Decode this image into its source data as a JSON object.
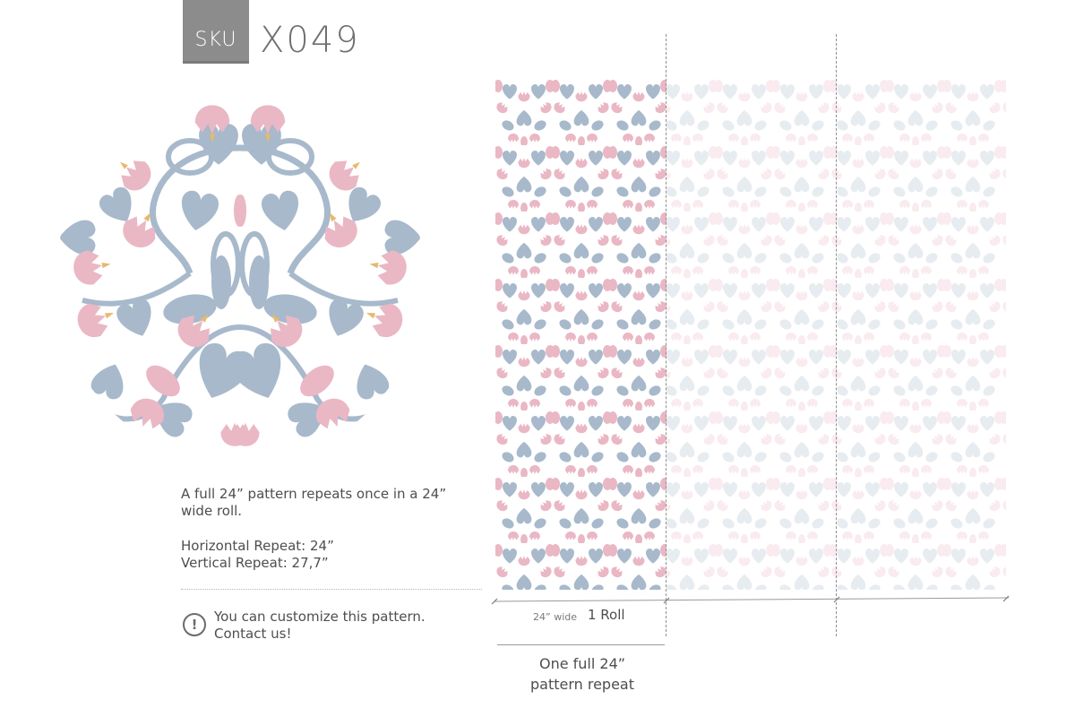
{
  "sku": {
    "label": "SKU",
    "code": "X049"
  },
  "colors": {
    "blue": "#a7b9cb",
    "pink": "#eab7c5",
    "gold": "#e8b96a",
    "line": "#a7b9cb"
  },
  "description": {
    "line1": "A full 24” pattern repeats once in a 24”",
    "line2": "wide roll.",
    "horizontal_repeat": "Horizontal Repeat: 24”",
    "vertical_repeat": "Vertical Repeat: 27,7”"
  },
  "customize": {
    "line1": "You can customize this pattern.",
    "line2": "Contact us!",
    "icon": "info-icon"
  },
  "rolls": {
    "width_label": "24” wide",
    "roll_label": "1 Roll",
    "repeat_line1": "One full 24”",
    "repeat_line2": "pattern repeat"
  }
}
